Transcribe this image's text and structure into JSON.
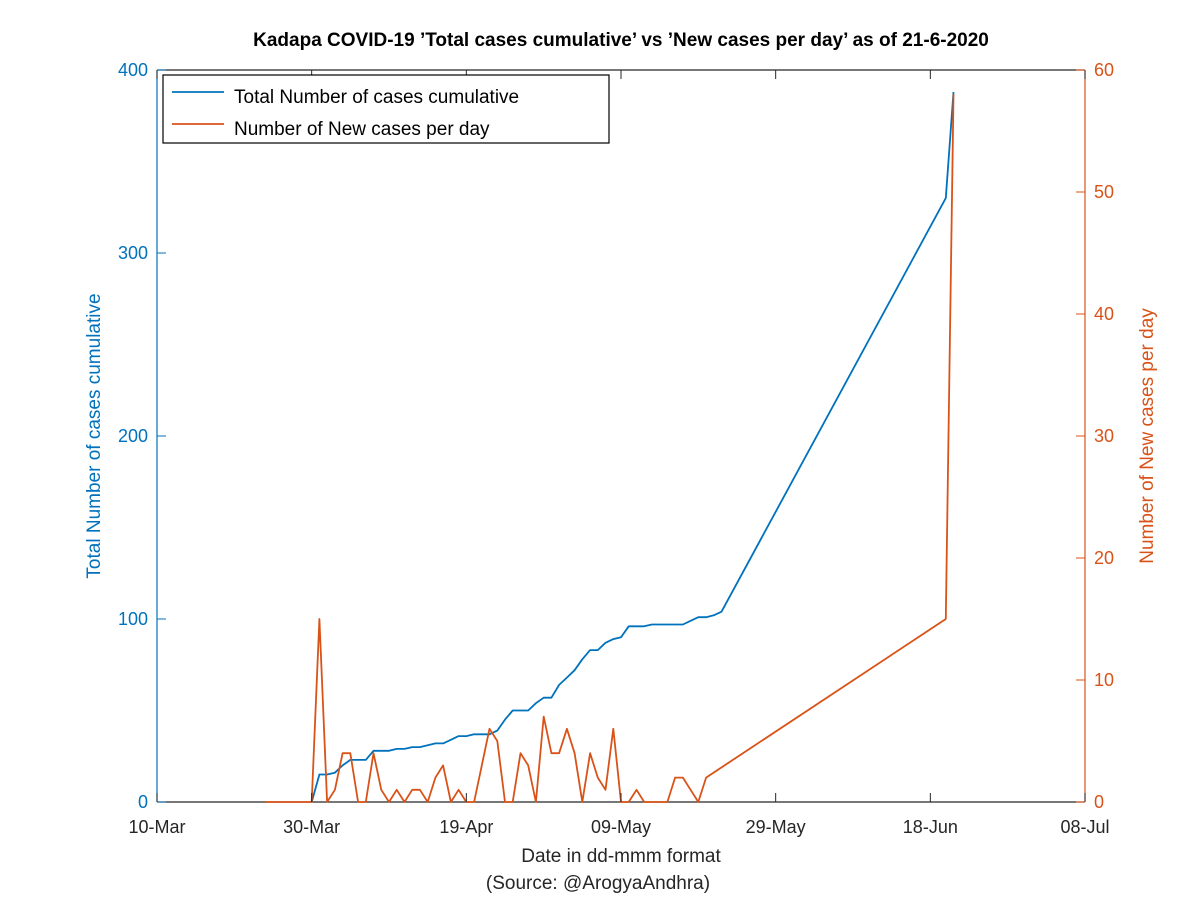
{
  "colors": {
    "left_axis": "#0072BD",
    "right_axis": "#D95319",
    "axis": "#262626",
    "background": "#ffffff"
  },
  "chart_data": {
    "type": "line",
    "title": "Kadapa COVID-19 ’Total cases cumulative’ vs ’New cases per day’ as of 21-6-2020",
    "xlabel": "Date in dd-mmm format",
    "xlabel_source": "(Source: @ArogyaAndhra)",
    "ylabel_left": "Total Number of cases cumulative",
    "ylabel_right": "Number of New cases per day",
    "x_ticks": [
      "10-Mar",
      "30-Mar",
      "19-Apr",
      "09-May",
      "29-May",
      "18-Jun",
      "08-Jul"
    ],
    "xlim": [
      "2020-03-10",
      "2020-07-08"
    ],
    "ylim_left": [
      0,
      400
    ],
    "ylim_right": [
      0,
      60
    ],
    "y_ticks_left": [
      0,
      100,
      200,
      300,
      400
    ],
    "y_ticks_right": [
      0,
      10,
      20,
      30,
      40,
      50,
      60
    ],
    "legend": {
      "position": "top-left",
      "entries": [
        "Total Number of cases cumulative",
        "Number of New cases per day"
      ]
    },
    "grid": false,
    "series": [
      {
        "name": "Total Number of cases cumulative",
        "axis": "left",
        "color": "#0072BD",
        "points": [
          [
            "2020-03-30",
            0
          ],
          [
            "2020-03-31",
            15
          ],
          [
            "2020-04-01",
            15
          ],
          [
            "2020-04-02",
            16
          ],
          [
            "2020-04-03",
            20
          ],
          [
            "2020-04-04",
            23
          ],
          [
            "2020-04-05",
            23
          ],
          [
            "2020-04-06",
            23
          ],
          [
            "2020-04-07",
            28
          ],
          [
            "2020-04-08",
            28
          ],
          [
            "2020-04-09",
            28
          ],
          [
            "2020-04-10",
            29
          ],
          [
            "2020-04-11",
            29
          ],
          [
            "2020-04-12",
            30
          ],
          [
            "2020-04-13",
            30
          ],
          [
            "2020-04-14",
            31
          ],
          [
            "2020-04-15",
            32
          ],
          [
            "2020-04-16",
            32
          ],
          [
            "2020-04-17",
            34
          ],
          [
            "2020-04-18",
            36
          ],
          [
            "2020-04-19",
            36
          ],
          [
            "2020-04-20",
            37
          ],
          [
            "2020-04-21",
            37
          ],
          [
            "2020-04-22",
            37
          ],
          [
            "2020-04-23",
            39
          ],
          [
            "2020-04-24",
            45
          ],
          [
            "2020-04-25",
            50
          ],
          [
            "2020-04-26",
            50
          ],
          [
            "2020-04-27",
            50
          ],
          [
            "2020-04-28",
            54
          ],
          [
            "2020-04-29",
            57
          ],
          [
            "2020-04-30",
            57
          ],
          [
            "2020-05-01",
            64
          ],
          [
            "2020-05-02",
            68
          ],
          [
            "2020-05-03",
            72
          ],
          [
            "2020-05-04",
            78
          ],
          [
            "2020-05-05",
            83
          ],
          [
            "2020-05-06",
            83
          ],
          [
            "2020-05-07",
            87
          ],
          [
            "2020-05-08",
            89
          ],
          [
            "2020-05-09",
            90
          ],
          [
            "2020-05-10",
            96
          ],
          [
            "2020-05-11",
            96
          ],
          [
            "2020-05-12",
            96
          ],
          [
            "2020-05-13",
            97
          ],
          [
            "2020-05-14",
            97
          ],
          [
            "2020-05-15",
            97
          ],
          [
            "2020-05-16",
            97
          ],
          [
            "2020-05-17",
            97
          ],
          [
            "2020-05-18",
            99
          ],
          [
            "2020-05-19",
            101
          ],
          [
            "2020-05-20",
            101
          ],
          [
            "2020-05-21",
            102
          ],
          [
            "2020-05-22",
            104
          ],
          [
            "2020-06-20",
            330
          ],
          [
            "2020-06-21",
            388
          ]
        ]
      },
      {
        "name": "Number of New cases per day",
        "axis": "right",
        "color": "#D95319",
        "points": [
          [
            "2020-03-24",
            0
          ],
          [
            "2020-03-30",
            0
          ],
          [
            "2020-03-31",
            15
          ],
          [
            "2020-04-01",
            0
          ],
          [
            "2020-04-02",
            1
          ],
          [
            "2020-04-03",
            4
          ],
          [
            "2020-04-04",
            4
          ],
          [
            "2020-04-05",
            0
          ],
          [
            "2020-04-06",
            0
          ],
          [
            "2020-04-07",
            4
          ],
          [
            "2020-04-08",
            1
          ],
          [
            "2020-04-09",
            0
          ],
          [
            "2020-04-10",
            1
          ],
          [
            "2020-04-11",
            0
          ],
          [
            "2020-04-12",
            1
          ],
          [
            "2020-04-13",
            1
          ],
          [
            "2020-04-14",
            0
          ],
          [
            "2020-04-15",
            2
          ],
          [
            "2020-04-16",
            3
          ],
          [
            "2020-04-17",
            0
          ],
          [
            "2020-04-18",
            1
          ],
          [
            "2020-04-19",
            0
          ],
          [
            "2020-04-20",
            0
          ],
          [
            "2020-04-21",
            3
          ],
          [
            "2020-04-22",
            6
          ],
          [
            "2020-04-23",
            5
          ],
          [
            "2020-04-24",
            0
          ],
          [
            "2020-04-25",
            0
          ],
          [
            "2020-04-26",
            4
          ],
          [
            "2020-04-27",
            3
          ],
          [
            "2020-04-28",
            0
          ],
          [
            "2020-04-29",
            7
          ],
          [
            "2020-04-30",
            4
          ],
          [
            "2020-05-01",
            4
          ],
          [
            "2020-05-02",
            6
          ],
          [
            "2020-05-03",
            4
          ],
          [
            "2020-05-04",
            0
          ],
          [
            "2020-05-05",
            4
          ],
          [
            "2020-05-06",
            2
          ],
          [
            "2020-05-07",
            1
          ],
          [
            "2020-05-08",
            6
          ],
          [
            "2020-05-09",
            0
          ],
          [
            "2020-05-10",
            0
          ],
          [
            "2020-05-11",
            1
          ],
          [
            "2020-05-12",
            0
          ],
          [
            "2020-05-13",
            0
          ],
          [
            "2020-05-14",
            0
          ],
          [
            "2020-05-15",
            0
          ],
          [
            "2020-05-16",
            2
          ],
          [
            "2020-05-17",
            2
          ],
          [
            "2020-05-18",
            1
          ],
          [
            "2020-05-19",
            0
          ],
          [
            "2020-05-20",
            2
          ],
          [
            "2020-06-20",
            15
          ],
          [
            "2020-06-21",
            58
          ]
        ]
      }
    ]
  }
}
